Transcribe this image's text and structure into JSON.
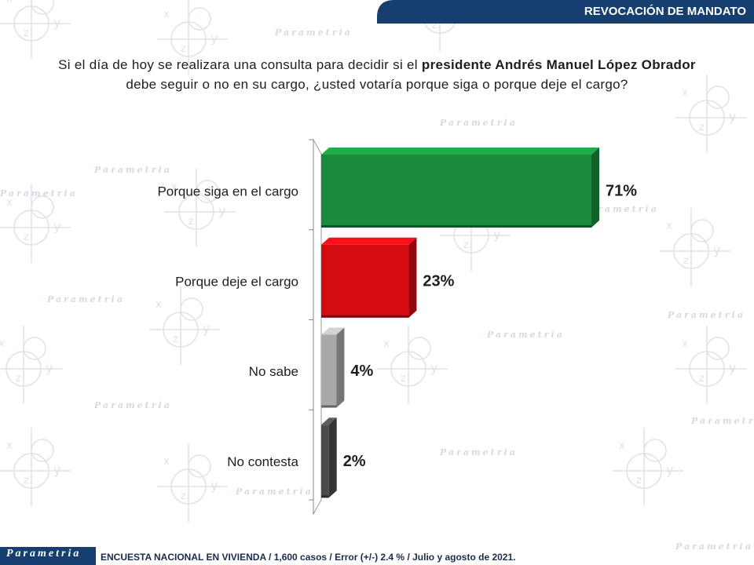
{
  "header": {
    "title": "REVOCACIÓN DE MANDATO",
    "color": "#163e6e"
  },
  "question": {
    "part1": "Si el día de hoy se realizara una consulta para decidir si el ",
    "bold": "presidente Andrés Manuel López Obrador",
    "part2": "debe seguir o no en su cargo, ¿usted votaría porque siga o porque deje el cargo?"
  },
  "watermark": {
    "brand": "Parametria",
    "x_letter": "x",
    "y_letter": "y",
    "z_letter": "z"
  },
  "chart_data": {
    "type": "bar",
    "orientation": "horizontal",
    "categories": [
      "Porque siga en el cargo",
      "Porque deje el cargo",
      "No sabe",
      "No contesta"
    ],
    "values": [
      71,
      23,
      4,
      2
    ],
    "value_labels": [
      "71%",
      "23%",
      "4%",
      "2%"
    ],
    "colors": [
      "#1a8a3c",
      "#d40c12",
      "#a9a9a9",
      "#4a4a4a"
    ],
    "unit": "%",
    "xlim": [
      0,
      71
    ],
    "three_d": true,
    "title": "",
    "xlabel": "",
    "ylabel": ""
  },
  "footer": {
    "logo": "Parametria",
    "note": "ENCUESTA NACIONAL EN VIVIENDA / 1,600 casos / Error (+/-) 2.4 % / Julio y agosto de 2021."
  }
}
